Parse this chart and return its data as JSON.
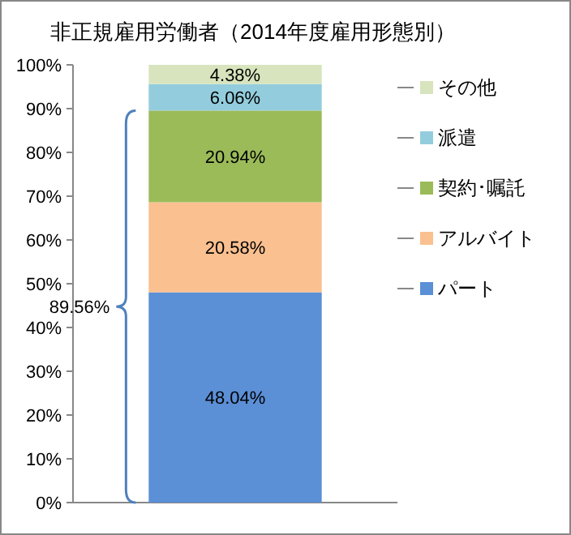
{
  "chart_data": {
    "type": "bar",
    "stacked": true,
    "title": "非正規雇用労働者（2014年度雇用形態別）",
    "categories": [
      null
    ],
    "series": [
      {
        "name": "パート",
        "color": "#5b8fd6",
        "values": [
          48.04
        ]
      },
      {
        "name": "アルバイト",
        "color": "#fac090",
        "values": [
          20.58
        ]
      },
      {
        "name": "契約･嘱託",
        "color": "#9bbb59",
        "values": [
          20.94
        ]
      },
      {
        "name": "派遣",
        "color": "#93cddd",
        "values": [
          6.06
        ]
      },
      {
        "name": "その他",
        "color": "#d7e4bd",
        "values": [
          4.38
        ]
      }
    ],
    "value_labels": [
      [
        "48.04%"
      ],
      [
        "20.58%"
      ],
      [
        "20.94%"
      ],
      [
        "6.06%"
      ],
      [
        "4.38%"
      ]
    ],
    "ylim": [
      0,
      100
    ],
    "yticks": [
      {
        "value": 0,
        "label": "0%"
      },
      {
        "value": 10,
        "label": "10%"
      },
      {
        "value": 20,
        "label": "20%"
      },
      {
        "value": 30,
        "label": "30%"
      },
      {
        "value": 40,
        "label": "40%"
      },
      {
        "value": 50,
        "label": "50%"
      },
      {
        "value": 60,
        "label": "60%"
      },
      {
        "value": 70,
        "label": "70%"
      },
      {
        "value": 80,
        "label": "80%"
      },
      {
        "value": 90,
        "label": "90%"
      },
      {
        "value": 100,
        "label": "100%"
      }
    ],
    "annotations": [
      "89.56%"
    ],
    "legend": "right"
  }
}
